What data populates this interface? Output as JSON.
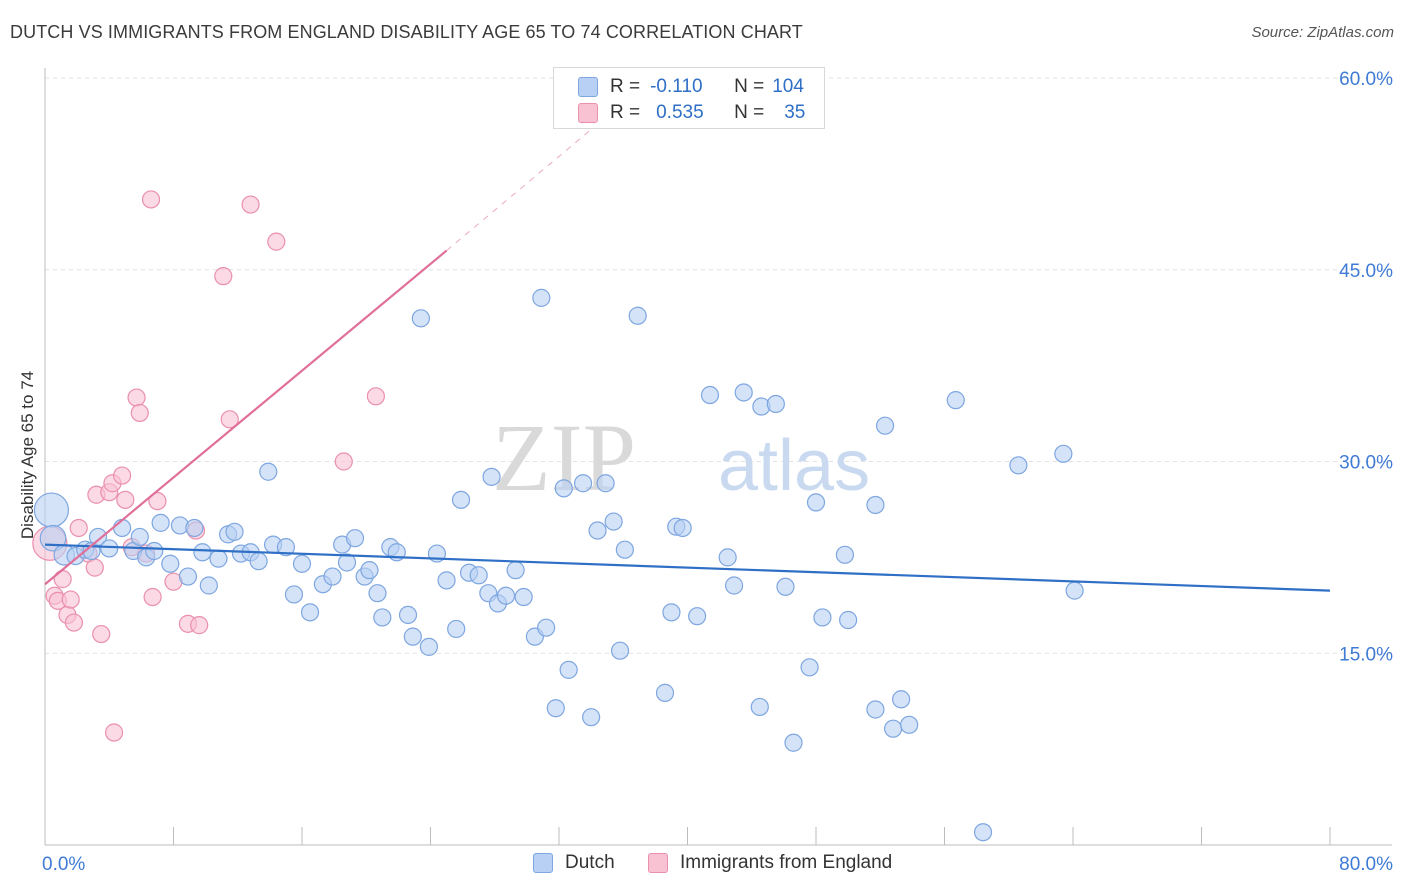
{
  "title": "DUTCH VS IMMIGRANTS FROM ENGLAND DISABILITY AGE 65 TO 74 CORRELATION CHART",
  "source": "Source: ZipAtlas.com",
  "watermark": {
    "zip": "ZIP",
    "atlas": "atlas"
  },
  "colors": {
    "dutch_fill": "#b7d0f3",
    "dutch_stroke": "#7ea6e0",
    "dutch_line": "#2f6fc6",
    "eng_fill": "#f9c2d3",
    "eng_stroke": "#ea8fad",
    "eng_line": "#e0709a",
    "axis_label_blue": "#3f7bd6",
    "grid": "#e1e1e1"
  },
  "stats": {
    "dutch": {
      "r_label": "R =",
      "r_value": "-0.110",
      "n_label": "N =",
      "n_value": "104"
    },
    "england": {
      "r_label": "R =",
      "r_value": "0.535",
      "n_label": "N =",
      "n_value": "35"
    }
  },
  "chart_data": {
    "type": "scatter",
    "title": "DUTCH VS IMMIGRANTS FROM ENGLAND DISABILITY AGE 65 TO 74 CORRELATION CHART",
    "xlabel": "",
    "ylabel": "Disability Age 65 to 74",
    "xlim": [
      0,
      80
    ],
    "ylim": [
      0,
      60
    ],
    "x_tick_labels": [
      "0.0%",
      "80.0%"
    ],
    "y_tick_labels": [
      {
        "value": 15,
        "label": "15.0%"
      },
      {
        "value": 30,
        "label": "30.0%"
      },
      {
        "value": 45,
        "label": "45.0%"
      },
      {
        "value": 60,
        "label": "60.0%"
      }
    ],
    "legend_position": "bottom",
    "grid": true,
    "series": [
      {
        "name": "Dutch",
        "trend": {
          "x": [
            0,
            80
          ],
          "y": [
            23.5,
            19.9
          ]
        },
        "points": [
          [
            0.4,
            26.2,
            2.0
          ],
          [
            0.5,
            24.0,
            1.5
          ],
          [
            1.2,
            22.7,
            1.2
          ],
          [
            1.9,
            22.6,
            1.0
          ],
          [
            2.5,
            23.1,
            1.0
          ],
          [
            2.9,
            23.0,
            1.0
          ],
          [
            3.3,
            24.1,
            1.0
          ],
          [
            4.0,
            23.2,
            1.0
          ],
          [
            4.8,
            24.8,
            1.0
          ],
          [
            5.5,
            23.0,
            1.0
          ],
          [
            5.9,
            24.1,
            1.0
          ],
          [
            6.3,
            22.5,
            1.0
          ],
          [
            6.8,
            23.0,
            1.0
          ],
          [
            7.2,
            25.2,
            1.0
          ],
          [
            7.8,
            22.0,
            1.0
          ],
          [
            8.4,
            25.0,
            1.0
          ],
          [
            8.9,
            21.0,
            1.0
          ],
          [
            9.3,
            24.8,
            1.0
          ],
          [
            9.8,
            22.9,
            1.0
          ],
          [
            10.2,
            20.3,
            1.0
          ],
          [
            10.8,
            22.4,
            1.0
          ],
          [
            11.4,
            24.3,
            1.0
          ],
          [
            11.8,
            24.5,
            1.0
          ],
          [
            12.2,
            22.8,
            1.0
          ],
          [
            12.8,
            22.9,
            1.0
          ],
          [
            13.3,
            22.2,
            1.0
          ],
          [
            13.9,
            29.2,
            1.0
          ],
          [
            14.2,
            23.5,
            1.0
          ],
          [
            15.0,
            23.3,
            1.0
          ],
          [
            15.5,
            19.6,
            1.0
          ],
          [
            16.0,
            22.0,
            1.0
          ],
          [
            16.5,
            18.2,
            1.0
          ],
          [
            17.3,
            20.4,
            1.0
          ],
          [
            17.9,
            21.0,
            1.0
          ],
          [
            18.5,
            23.5,
            1.0
          ],
          [
            18.8,
            22.1,
            1.0
          ],
          [
            19.3,
            24.0,
            1.0
          ],
          [
            19.9,
            21.0,
            1.0
          ],
          [
            20.2,
            21.5,
            1.0
          ],
          [
            20.7,
            19.7,
            1.0
          ],
          [
            21.0,
            17.8,
            1.0
          ],
          [
            21.5,
            23.3,
            1.0
          ],
          [
            21.9,
            22.9,
            1.0
          ],
          [
            22.6,
            18.0,
            1.0
          ],
          [
            22.9,
            16.3,
            1.0
          ],
          [
            23.4,
            41.2,
            1.0
          ],
          [
            23.9,
            15.5,
            1.0
          ],
          [
            24.4,
            22.8,
            1.0
          ],
          [
            25.0,
            20.7,
            1.0
          ],
          [
            25.6,
            16.9,
            1.0
          ],
          [
            25.9,
            27.0,
            1.0
          ],
          [
            26.4,
            21.3,
            1.0
          ],
          [
            27.0,
            21.1,
            1.0
          ],
          [
            27.6,
            19.7,
            1.0
          ],
          [
            27.8,
            28.8,
            1.0
          ],
          [
            28.2,
            18.9,
            1.0
          ],
          [
            28.7,
            19.5,
            1.0
          ],
          [
            29.3,
            21.5,
            1.0
          ],
          [
            29.8,
            19.4,
            1.0
          ],
          [
            30.5,
            16.3,
            1.0
          ],
          [
            30.9,
            42.8,
            1.0
          ],
          [
            31.2,
            17.0,
            1.0
          ],
          [
            31.8,
            10.7,
            1.0
          ],
          [
            32.3,
            27.9,
            1.0
          ],
          [
            32.6,
            13.7,
            1.0
          ],
          [
            33.5,
            28.3,
            1.0
          ],
          [
            34.0,
            10.0,
            1.0
          ],
          [
            34.4,
            24.6,
            1.0
          ],
          [
            34.9,
            28.3,
            1.0
          ],
          [
            35.4,
            25.3,
            1.0
          ],
          [
            35.8,
            15.2,
            1.0
          ],
          [
            36.1,
            23.1,
            1.0
          ],
          [
            36.9,
            41.4,
            1.0
          ],
          [
            38.6,
            11.9,
            1.0
          ],
          [
            39.0,
            18.2,
            1.0
          ],
          [
            39.3,
            24.9,
            1.0
          ],
          [
            39.7,
            24.8,
            1.0
          ],
          [
            40.6,
            17.9,
            1.0
          ],
          [
            41.4,
            35.2,
            1.0
          ],
          [
            42.5,
            22.5,
            1.0
          ],
          [
            42.9,
            20.3,
            1.0
          ],
          [
            43.5,
            35.4,
            1.0
          ],
          [
            44.5,
            10.8,
            1.0
          ],
          [
            44.6,
            34.3,
            1.0
          ],
          [
            45.5,
            34.5,
            1.0
          ],
          [
            46.1,
            20.2,
            1.0
          ],
          [
            46.6,
            8.0,
            1.0
          ],
          [
            47.6,
            13.9,
            1.0
          ],
          [
            48.0,
            26.8,
            1.0
          ],
          [
            48.4,
            17.8,
            1.0
          ],
          [
            49.8,
            22.7,
            1.0
          ],
          [
            50.0,
            17.6,
            1.0
          ],
          [
            51.7,
            10.6,
            1.0
          ],
          [
            51.7,
            26.6,
            1.0
          ],
          [
            52.3,
            32.8,
            1.0
          ],
          [
            52.8,
            9.1,
            1.0
          ],
          [
            53.3,
            11.4,
            1.0
          ],
          [
            53.8,
            9.4,
            1.0
          ],
          [
            56.7,
            34.8,
            1.0
          ],
          [
            58.4,
            1.0,
            1.0
          ],
          [
            60.6,
            29.7,
            1.0
          ],
          [
            63.4,
            30.6,
            1.0
          ],
          [
            64.1,
            19.9,
            1.0
          ]
        ]
      },
      {
        "name": "Immigrants from England",
        "trend": {
          "x": [
            0,
            25
          ],
          "y": [
            20.4,
            46.5
          ],
          "dash_to": [
            34.5,
            56.5
          ]
        },
        "points": [
          [
            0.3,
            23.6,
            2.0
          ],
          [
            0.6,
            19.5,
            1.0
          ],
          [
            0.8,
            19.1,
            1.0
          ],
          [
            1.1,
            20.8,
            1.0
          ],
          [
            1.4,
            18.0,
            1.0
          ],
          [
            1.6,
            19.2,
            1.0
          ],
          [
            1.8,
            17.4,
            1.0
          ],
          [
            2.1,
            24.8,
            1.0
          ],
          [
            2.7,
            22.8,
            1.0
          ],
          [
            3.1,
            21.7,
            1.0
          ],
          [
            3.2,
            27.4,
            1.0
          ],
          [
            3.5,
            16.5,
            1.0
          ],
          [
            4.0,
            27.6,
            1.0
          ],
          [
            4.2,
            28.3,
            1.0
          ],
          [
            4.3,
            8.8,
            1.0
          ],
          [
            4.8,
            28.9,
            1.0
          ],
          [
            5.0,
            27.0,
            1.0
          ],
          [
            5.4,
            23.3,
            1.0
          ],
          [
            5.7,
            35.0,
            1.0
          ],
          [
            5.9,
            33.8,
            1.0
          ],
          [
            6.3,
            22.8,
            1.0
          ],
          [
            6.6,
            50.5,
            1.0
          ],
          [
            6.7,
            19.4,
            1.0
          ],
          [
            7.0,
            26.9,
            1.0
          ],
          [
            8.0,
            20.6,
            1.0
          ],
          [
            8.9,
            17.3,
            1.0
          ],
          [
            9.4,
            24.6,
            1.0
          ],
          [
            9.6,
            17.2,
            1.0
          ],
          [
            11.1,
            44.5,
            1.0
          ],
          [
            11.5,
            33.3,
            1.0
          ],
          [
            12.8,
            50.1,
            1.0
          ],
          [
            14.4,
            47.2,
            1.0
          ],
          [
            18.6,
            30.0,
            1.0
          ],
          [
            20.6,
            35.1,
            1.0
          ]
        ]
      }
    ]
  },
  "legend": {
    "dutch_label": "Dutch",
    "england_label": "Immigrants from England"
  }
}
